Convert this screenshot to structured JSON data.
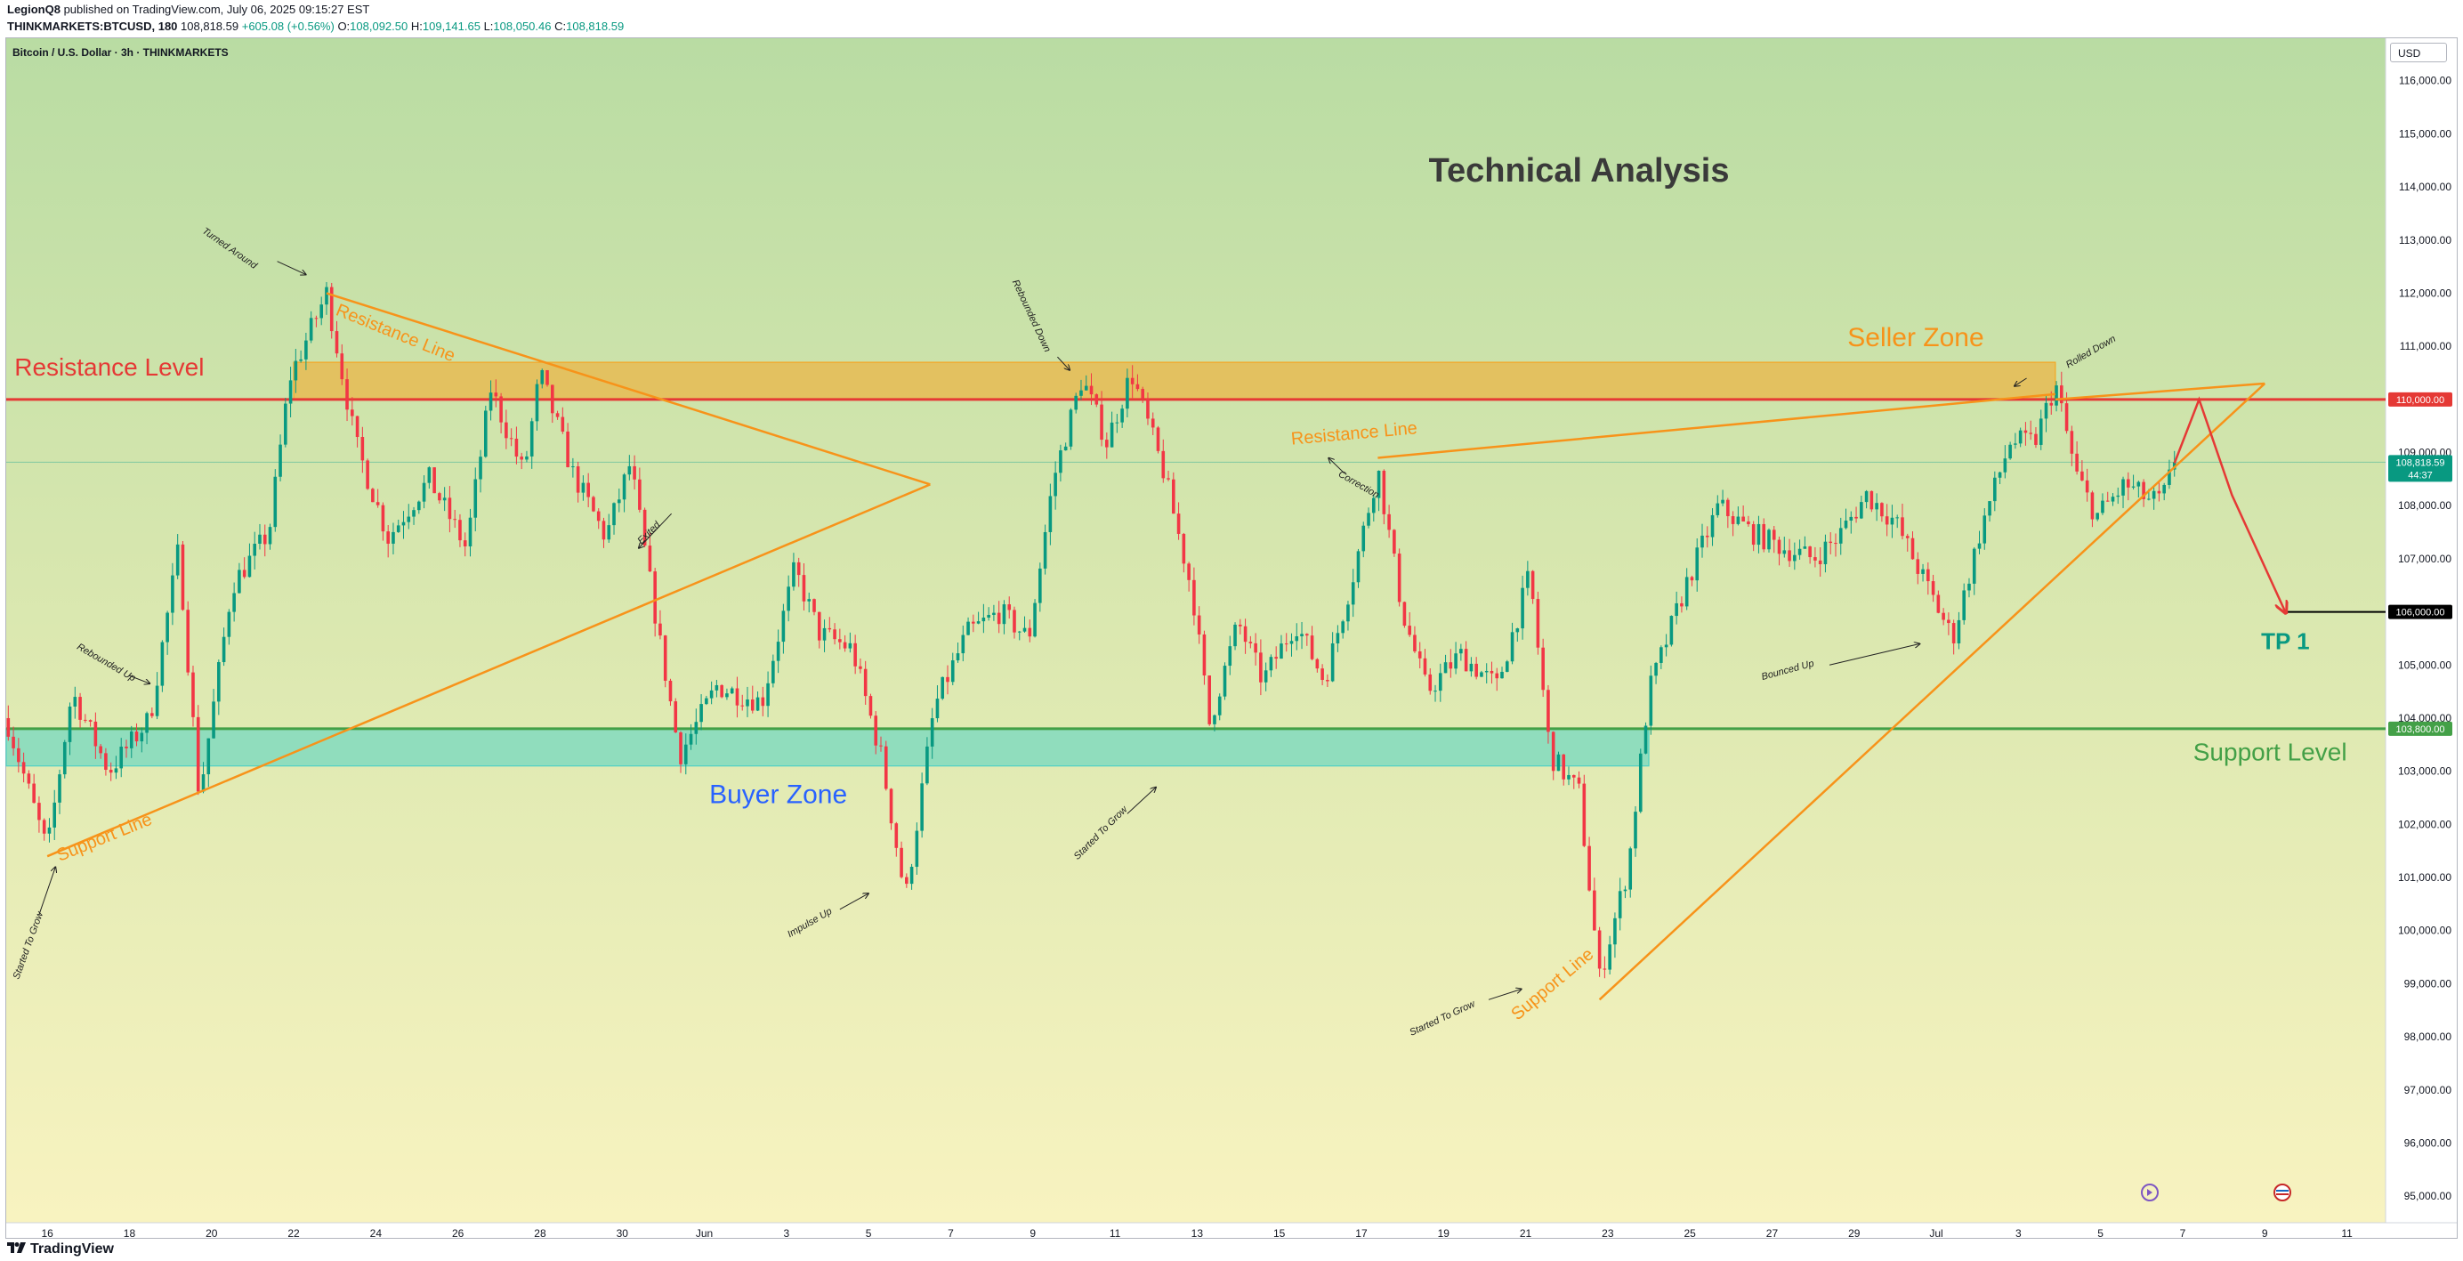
{
  "header": {
    "publisher": "LegionQ8",
    "published_text": "published on TradingView.com, July 06, 2025 09:15:27 EST",
    "symbol": "THINKMARKETS:BTCUSD, 180",
    "last": "108,818.59",
    "change": "+605.08 (+0.56%)",
    "o_label": "O:",
    "o_value": "108,092.50",
    "h_label": "H:",
    "h_value": "109,141.65",
    "l_label": "L:",
    "l_value": "108,050.46",
    "c_label": "C:",
    "c_value": "108,818.59"
  },
  "series_title": "Bitcoin / U.S. Dollar · 3h · THINKMARKETS",
  "currency": "USD",
  "footer_logo": "TradingView",
  "chart_data": {
    "type": "candlestick",
    "title": "Technical Analysis",
    "ylim": [
      94500,
      116800
    ],
    "y_ticks": [
      95000,
      96000,
      97000,
      98000,
      99000,
      100000,
      101000,
      102000,
      103000,
      104000,
      105000,
      106000,
      107000,
      108000,
      109000,
      110000,
      111000,
      112000,
      113000,
      114000,
      115000,
      116000
    ],
    "y_tick_labels": [
      "95,000.00",
      "96,000.00",
      "97,000.00",
      "98,000.00",
      "99,000.00",
      "100,000.00",
      "101,000.00",
      "102,000.00",
      "103,000.00",
      "104,000.00",
      "105,000.00",
      "106,000.00",
      "107,000.00",
      "108,000.00",
      "109,000.00",
      "110,000.00",
      "111,000.00",
      "112,000.00",
      "113,000.00",
      "114,000.00",
      "115,000.00",
      "116,000.00"
    ],
    "x_range_days": [
      0,
      57.2
    ],
    "x_ticks": [
      {
        "d": 1,
        "label": "16"
      },
      {
        "d": 3,
        "label": "18"
      },
      {
        "d": 5,
        "label": "20"
      },
      {
        "d": 7,
        "label": "22"
      },
      {
        "d": 9,
        "label": "24"
      },
      {
        "d": 11,
        "label": "26"
      },
      {
        "d": 13,
        "label": "28"
      },
      {
        "d": 15,
        "label": "30"
      },
      {
        "d": 17,
        "label": "Jun"
      },
      {
        "d": 19,
        "label": "3"
      },
      {
        "d": 21,
        "label": "5"
      },
      {
        "d": 23,
        "label": "7"
      },
      {
        "d": 25,
        "label": "9"
      },
      {
        "d": 27,
        "label": "11"
      },
      {
        "d": 29,
        "label": "13"
      },
      {
        "d": 31,
        "label": "15"
      },
      {
        "d": 33,
        "label": "17"
      },
      {
        "d": 35,
        "label": "19"
      },
      {
        "d": 37,
        "label": "21"
      },
      {
        "d": 39,
        "label": "23"
      },
      {
        "d": 41,
        "label": "25"
      },
      {
        "d": 43,
        "label": "27"
      },
      {
        "d": 45,
        "label": "29"
      },
      {
        "d": 47,
        "label": "Jul"
      },
      {
        "d": 49,
        "label": "3"
      },
      {
        "d": 51,
        "label": "5"
      },
      {
        "d": 53,
        "label": "7"
      },
      {
        "d": 55,
        "label": "9"
      },
      {
        "d": 57,
        "label": "11"
      }
    ],
    "price_path": [
      [
        0,
        104000
      ],
      [
        1.0,
        101500
      ],
      [
        1.6,
        104500
      ],
      [
        2.5,
        103000
      ],
      [
        3.5,
        104000
      ],
      [
        4.2,
        107200
      ],
      [
        4.7,
        102500
      ],
      [
        5.5,
        106500
      ],
      [
        6.4,
        107500
      ],
      [
        6.9,
        110400
      ],
      [
        7.8,
        112000
      ],
      [
        8.5,
        109200
      ],
      [
        9.3,
        107400
      ],
      [
        10.3,
        108500
      ],
      [
        11.2,
        107200
      ],
      [
        11.8,
        110200
      ],
      [
        12.6,
        108600
      ],
      [
        13.0,
        110500
      ],
      [
        13.8,
        108600
      ],
      [
        14.6,
        107400
      ],
      [
        15.2,
        108800
      ],
      [
        15.9,
        105500
      ],
      [
        16.4,
        103300
      ],
      [
        17.3,
        104600
      ],
      [
        18.4,
        104300
      ],
      [
        19.2,
        106800
      ],
      [
        19.8,
        105600
      ],
      [
        20.6,
        105300
      ],
      [
        21.3,
        103300
      ],
      [
        21.9,
        100600
      ],
      [
        22.6,
        104200
      ],
      [
        23.4,
        105600
      ],
      [
        24.2,
        106000
      ],
      [
        24.9,
        105500
      ],
      [
        25.5,
        108500
      ],
      [
        26.2,
        110400
      ],
      [
        26.8,
        109200
      ],
      [
        27.4,
        110500
      ],
      [
        28.2,
        108600
      ],
      [
        28.9,
        106300
      ],
      [
        29.3,
        103900
      ],
      [
        30.0,
        105800
      ],
      [
        30.6,
        104700
      ],
      [
        31.4,
        105800
      ],
      [
        32.1,
        104700
      ],
      [
        32.8,
        106700
      ],
      [
        33.4,
        108700
      ],
      [
        34.0,
        106000
      ],
      [
        34.6,
        104500
      ],
      [
        35.4,
        105200
      ],
      [
        36.3,
        104600
      ],
      [
        37.1,
        106700
      ],
      [
        37.6,
        103300
      ],
      [
        38.3,
        102600
      ],
      [
        38.8,
        99100
      ],
      [
        39.5,
        101200
      ],
      [
        40.0,
        104500
      ],
      [
        40.9,
        106500
      ],
      [
        41.7,
        108000
      ],
      [
        42.5,
        107500
      ],
      [
        43.3,
        107200
      ],
      [
        44.0,
        107000
      ],
      [
        44.6,
        107400
      ],
      [
        45.3,
        108200
      ],
      [
        46.0,
        107700
      ],
      [
        46.7,
        106600
      ],
      [
        47.4,
        105500
      ],
      [
        48.1,
        107600
      ],
      [
        48.8,
        109200
      ],
      [
        49.4,
        109200
      ],
      [
        49.9,
        110300
      ],
      [
        50.4,
        108600
      ],
      [
        50.9,
        107800
      ],
      [
        51.6,
        108400
      ],
      [
        52.2,
        108100
      ],
      [
        52.5,
        108100
      ],
      [
        52.8,
        108818.59
      ]
    ],
    "zones": [
      {
        "name": "Seller Zone",
        "from_day": 7.0,
        "to_day": 49.9,
        "low": 110000,
        "high": 110700,
        "color": "#f5a623"
      },
      {
        "name": "Buyer Zone",
        "from_day": 0,
        "to_day": 40.0,
        "low": 103100,
        "high": 103800,
        "color": "#4fd1c5"
      }
    ],
    "levels": [
      {
        "name": "Resistance Level",
        "value": 110000,
        "color": "#e53935",
        "tag": "110,000.00"
      },
      {
        "name": "Support Level",
        "value": 103800,
        "color": "#43a047",
        "tag": "103,800.00"
      },
      {
        "name": "TP 1",
        "value": 106000,
        "color": "#000000",
        "tag": "106,000.00"
      }
    ],
    "current_price": {
      "value": 108818.59,
      "label": "108,818.59",
      "countdown": "44:37",
      "color": "#089981"
    },
    "trendlines": [
      {
        "d1": 1.0,
        "p1": 101400,
        "d2": 22.5,
        "p2": 108400,
        "color": "#f7931a"
      },
      {
        "d1": 7.8,
        "p1": 112000,
        "d2": 22.5,
        "p2": 108400,
        "color": "#f7931a"
      },
      {
        "d1": 33.4,
        "p1": 108900,
        "d2": 49.9,
        "p2": 110100,
        "color": "#f7931a"
      },
      {
        "d1": 38.8,
        "p1": 98700,
        "d2": 55.0,
        "p2": 110300,
        "color": "#f7931a"
      },
      {
        "d1": 49.9,
        "p1": 110000,
        "d2": 55.0,
        "p2": 110300,
        "color": "#f7931a"
      }
    ],
    "projection": [
      [
        52.8,
        108800
      ],
      [
        53.4,
        110000
      ],
      [
        54.2,
        108200
      ],
      [
        55.5,
        106000
      ]
    ],
    "labels": [
      {
        "text": "Resistance Level",
        "d": 0.2,
        "p": 110450,
        "color": "#e53935",
        "size": 28,
        "anchor": "start",
        "rotate": 0
      },
      {
        "text": "Support Level",
        "d": 57.0,
        "p": 103200,
        "color": "#43a047",
        "size": 28,
        "anchor": "end",
        "rotate": 0
      },
      {
        "text": "Seller Zone",
        "d": 46.5,
        "p": 111000,
        "color": "#f7931a",
        "size": 30,
        "anchor": "middle",
        "rotate": 0
      },
      {
        "text": "Buyer Zone",
        "d": 18.8,
        "p": 102400,
        "color": "#2962ff",
        "size": 30,
        "anchor": "middle",
        "rotate": 0
      },
      {
        "text": "Technical Analysis",
        "d": 38.3,
        "p": 114100,
        "color": "#3a3a3a",
        "size": 38,
        "anchor": "middle",
        "rotate": 0
      },
      {
        "text": "TP 1",
        "d": 55.5,
        "p": 105300,
        "color": "#089981",
        "size": 26,
        "anchor": "middle",
        "rotate": 0
      },
      {
        "text": "Resistance Line",
        "d": 8.0,
        "p": 111600,
        "color": "#f7931a",
        "size": 20,
        "anchor": "start",
        "rotate": 22
      },
      {
        "text": "Support Line",
        "d": 1.3,
        "p": 101300,
        "color": "#f7931a",
        "size": 20,
        "anchor": "start",
        "rotate": -22
      },
      {
        "text": "Resistance Line",
        "d": 31.3,
        "p": 109150,
        "color": "#f7931a",
        "size": 20,
        "anchor": "start",
        "rotate": -5
      },
      {
        "text": "Support Line",
        "d": 36.8,
        "p": 98300,
        "color": "#f7931a",
        "size": 20,
        "anchor": "start",
        "rotate": -40
      },
      {
        "text": "Turned Around",
        "d": 5.4,
        "p": 112800,
        "color": "#222",
        "size": 11,
        "anchor": "middle",
        "rotate": 35
      },
      {
        "text": "Rebounded Up",
        "d": 2.4,
        "p": 105000,
        "color": "#222",
        "size": 11,
        "anchor": "middle",
        "rotate": 30
      },
      {
        "text": "Started To Grow",
        "d": 0.6,
        "p": 99700,
        "color": "#222",
        "size": 11,
        "anchor": "middle",
        "rotate": -70
      },
      {
        "text": "Exited",
        "d": 15.7,
        "p": 107450,
        "color": "#222",
        "size": 11,
        "anchor": "middle",
        "rotate": -45
      },
      {
        "text": "Impulse Up",
        "d": 19.6,
        "p": 100100,
        "color": "#222",
        "size": 11,
        "anchor": "middle",
        "rotate": -30
      },
      {
        "text": "Rebounded Down",
        "d": 24.9,
        "p": 111550,
        "color": "#222",
        "size": 11,
        "anchor": "middle",
        "rotate": 65
      },
      {
        "text": "Started To Grow",
        "d": 26.7,
        "p": 101800,
        "color": "#222",
        "size": 11,
        "anchor": "middle",
        "rotate": -45
      },
      {
        "text": "Correction",
        "d": 32.9,
        "p": 108350,
        "color": "#222",
        "size": 11,
        "anchor": "middle",
        "rotate": 30
      },
      {
        "text": "Started To Grow",
        "d": 35.0,
        "p": 98300,
        "color": "#222",
        "size": 11,
        "anchor": "middle",
        "rotate": -25
      },
      {
        "text": "Bounced Up",
        "d": 43.4,
        "p": 104850,
        "color": "#222",
        "size": 11,
        "anchor": "middle",
        "rotate": -15
      },
      {
        "text": "Rolled Down",
        "d": 50.8,
        "p": 110850,
        "color": "#222",
        "size": 11,
        "anchor": "middle",
        "rotate": -30
      }
    ],
    "arrows": [
      {
        "d1": 6.6,
        "p1": 112600,
        "d2": 7.3,
        "p2": 112350
      },
      {
        "d1": 3.0,
        "p1": 104800,
        "d2": 3.5,
        "p2": 104650
      },
      {
        "d1": 0.8,
        "p1": 100300,
        "d2": 1.2,
        "p2": 101200
      },
      {
        "d1": 16.2,
        "p1": 107850,
        "d2": 15.4,
        "p2": 107200
      },
      {
        "d1": 20.3,
        "p1": 100400,
        "d2": 21.0,
        "p2": 100700
      },
      {
        "d1": 25.6,
        "p1": 110800,
        "d2": 25.9,
        "p2": 110550
      },
      {
        "d1": 27.3,
        "p1": 102200,
        "d2": 28.0,
        "p2": 102700
      },
      {
        "d1": 32.6,
        "p1": 108600,
        "d2": 32.2,
        "p2": 108900
      },
      {
        "d1": 36.1,
        "p1": 98700,
        "d2": 36.9,
        "p2": 98900
      },
      {
        "d1": 44.4,
        "p1": 105000,
        "d2": 46.6,
        "p2": 105400
      },
      {
        "d1": 49.2,
        "p1": 110400,
        "d2": 48.9,
        "p2": 110250
      }
    ]
  }
}
